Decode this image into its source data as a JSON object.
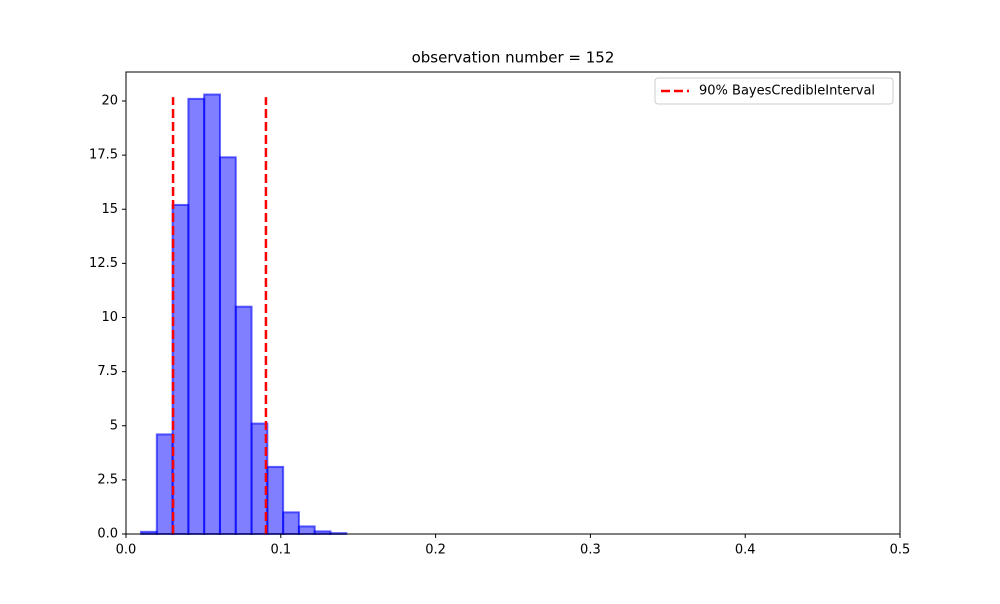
{
  "chart_data": {
    "type": "histogram",
    "title": "observation number = 152",
    "bins": [
      0.0097,
      0.0199,
      0.0301,
      0.0403,
      0.0505,
      0.0607,
      0.0709,
      0.0811,
      0.0913,
      0.1015,
      0.1117,
      0.1219,
      0.1321,
      0.1423
    ],
    "values": [
      0.1,
      4.6,
      15.2,
      20.1,
      20.3,
      17.4,
      10.5,
      5.1,
      3.1,
      1.0,
      0.35,
      0.12,
      0.04
    ],
    "color": "#0000ff",
    "vlines": {
      "name": "90% BayesCredibleInterval",
      "x": [
        0.0304,
        0.0904
      ],
      "ymax": 20.18,
      "color": "#ff0000"
    },
    "xlim": [
      0,
      0.5
    ],
    "xticks": [
      {
        "value": 0,
        "label": "0.0"
      },
      0.1,
      0.2,
      0.3,
      0.4,
      0.5
    ],
    "ylim": [
      0,
      21.34
    ],
    "yticks": [
      {
        "value": 0,
        "label": "0.0"
      },
      2.5,
      5.0,
      7.5,
      10.0,
      12.5,
      15.0,
      17.5,
      20.0
    ],
    "legend": "upper right",
    "grid": false
  }
}
